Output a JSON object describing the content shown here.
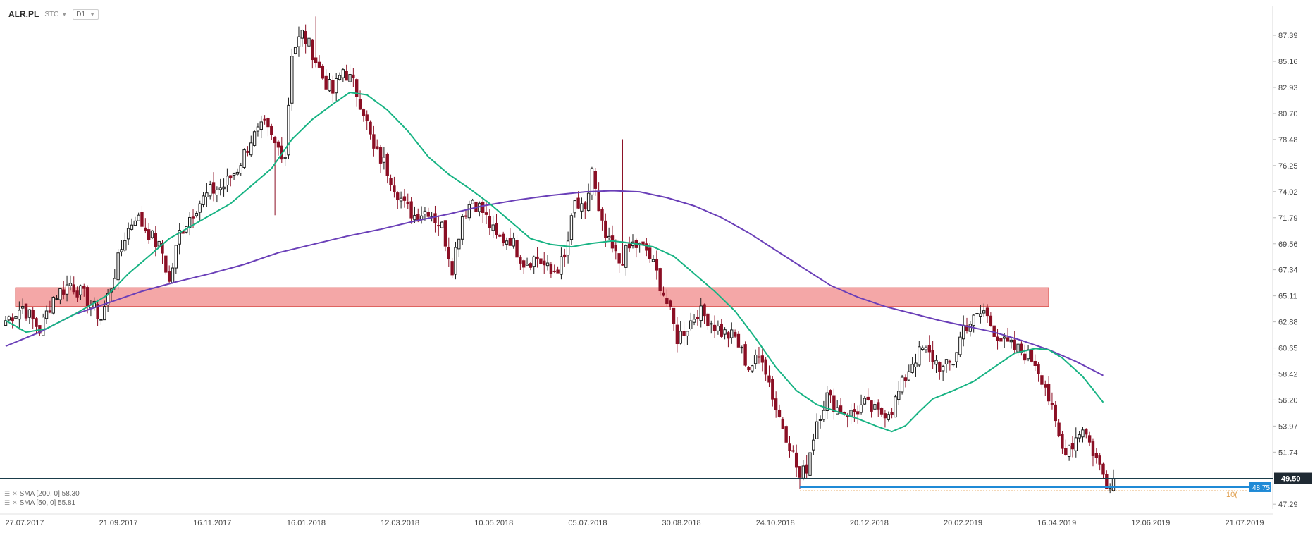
{
  "toolbar": {
    "symbol": "ALR.PL",
    "chart_type": "STC",
    "interval": "D1"
  },
  "legend": {
    "sma200_label": "SMA [200, 0] 58.30",
    "sma50_label": "SMA [50, 0] 55.81"
  },
  "colors": {
    "bull_candle": "#1a1a1a",
    "bear_candle": "#8b0f24",
    "sma200": "#6a3fb8",
    "sma50": "#17b383",
    "support_zone_fill": "#f08a8a",
    "support_zone_border": "#d9534f",
    "price_line": "#1a3c4a",
    "low_line": "#1f8ad6"
  },
  "chart_data": {
    "type": "candlestick",
    "title": "",
    "y_axis": {
      "ticks": [
        "87.39",
        "85.16",
        "82.93",
        "80.70",
        "78.48",
        "76.25",
        "74.02",
        "71.79",
        "69.56",
        "67.34",
        "65.11",
        "62.88",
        "60.65",
        "58.42",
        "56.20",
        "53.97",
        "51.74",
        "47.29"
      ],
      "range": [
        47.0,
        89.2
      ]
    },
    "x_axis": {
      "ticks": [
        "27.07.2017",
        "21.09.2017",
        "16.11.2017",
        "16.01.2018",
        "12.03.2018",
        "10.05.2018",
        "05.07.2018",
        "30.08.2018",
        "24.10.2018",
        "20.12.2018",
        "20.02.2019",
        "16.04.2019",
        "12.06.2019",
        "21.07.2019"
      ]
    },
    "support_zone": {
      "from": 64.2,
      "to": 65.8
    },
    "last_price": {
      "value": 49.5,
      "label": "49.50"
    },
    "recent_low": {
      "value": 48.75,
      "label": "48.75"
    },
    "partial_label": "10(",
    "close_path": [
      [
        0,
        63.0
      ],
      [
        5,
        64.2
      ],
      [
        10,
        62.2
      ],
      [
        14,
        65.0
      ],
      [
        19,
        66.2
      ],
      [
        24,
        64.8
      ],
      [
        28,
        63.2
      ],
      [
        31,
        66.0
      ],
      [
        35,
        70.2
      ],
      [
        38,
        72.0
      ],
      [
        42,
        70.5
      ],
      [
        46,
        68.8
      ],
      [
        48,
        66.2
      ],
      [
        51,
        70.5
      ],
      [
        56,
        72.8
      ],
      [
        60,
        74.0
      ],
      [
        64,
        74.5
      ],
      [
        68,
        76.0
      ],
      [
        72,
        78.5
      ],
      [
        76,
        79.6
      ],
      [
        79,
        78.0
      ],
      [
        82,
        77.2
      ],
      [
        84,
        86.0
      ],
      [
        87,
        87.5
      ],
      [
        90,
        86.0
      ],
      [
        93,
        83.8
      ],
      [
        96,
        82.5
      ],
      [
        99,
        84.5
      ],
      [
        102,
        83.2
      ],
      [
        105,
        81.0
      ],
      [
        108,
        77.5
      ],
      [
        111,
        76.5
      ],
      [
        114,
        74.6
      ],
      [
        117,
        72.8
      ],
      [
        120,
        72.0
      ],
      [
        124,
        72.5
      ],
      [
        128,
        71.0
      ],
      [
        131,
        67.6
      ],
      [
        134,
        72.0
      ],
      [
        137,
        73.4
      ],
      [
        140,
        72.3
      ],
      [
        144,
        70.0
      ],
      [
        148,
        70.0
      ],
      [
        152,
        68.0
      ],
      [
        156,
        68.4
      ],
      [
        160,
        67.0
      ],
      [
        164,
        68.2
      ],
      [
        167,
        73.0
      ],
      [
        170,
        72.0
      ],
      [
        172,
        76.0
      ],
      [
        174,
        72.0
      ],
      [
        176,
        70.0
      ],
      [
        180,
        68.0
      ],
      [
        184,
        69.5
      ],
      [
        188,
        69.0
      ],
      [
        191,
        67.0
      ],
      [
        194,
        64.5
      ],
      [
        197,
        61.5
      ],
      [
        200,
        62.5
      ],
      [
        203,
        63.8
      ],
      [
        206,
        63.2
      ],
      [
        210,
        62.0
      ],
      [
        214,
        61.5
      ],
      [
        218,
        59.0
      ],
      [
        222,
        60.0
      ],
      [
        226,
        55.5
      ],
      [
        230,
        52.5
      ],
      [
        233,
        49.5
      ],
      [
        235,
        50.5
      ],
      [
        238,
        54.5
      ],
      [
        241,
        56.5
      ],
      [
        244,
        55.5
      ],
      [
        248,
        55.0
      ],
      [
        252,
        55.8
      ],
      [
        256,
        55.0
      ],
      [
        260,
        55.5
      ],
      [
        263,
        57.5
      ],
      [
        266,
        59.5
      ],
      [
        269,
        60.5
      ],
      [
        272,
        59.8
      ],
      [
        275,
        58.8
      ],
      [
        278,
        59.5
      ],
      [
        281,
        62.5
      ],
      [
        284,
        63.0
      ],
      [
        287,
        63.8
      ],
      [
        290,
        62.2
      ],
      [
        293,
        61.0
      ],
      [
        296,
        60.6
      ],
      [
        299,
        60.2
      ],
      [
        302,
        59.5
      ],
      [
        305,
        57.5
      ],
      [
        308,
        54.0
      ],
      [
        310,
        52.0
      ],
      [
        313,
        52.5
      ],
      [
        316,
        54.0
      ],
      [
        318,
        52.5
      ],
      [
        321,
        50.5
      ],
      [
        323,
        49.2
      ],
      [
        325,
        49.5
      ]
    ],
    "spikes": [
      {
        "i": 79,
        "low": 72.0
      },
      {
        "i": 91,
        "high": 89.0
      },
      {
        "i": 115,
        "low": 72.5
      },
      {
        "i": 181,
        "high": 78.5
      },
      {
        "i": 185,
        "high": 70.0
      },
      {
        "i": 233,
        "low": 48.6
      },
      {
        "i": 323,
        "low": 48.6
      }
    ],
    "sma50": [
      [
        0,
        63.0
      ],
      [
        6,
        62.0
      ],
      [
        12,
        62.3
      ],
      [
        20,
        63.5
      ],
      [
        26,
        64.5
      ],
      [
        30,
        65.2
      ],
      [
        36,
        67.0
      ],
      [
        42,
        68.5
      ],
      [
        48,
        70.0
      ],
      [
        54,
        71.0
      ],
      [
        60,
        72.0
      ],
      [
        66,
        73.0
      ],
      [
        72,
        74.5
      ],
      [
        78,
        76.0
      ],
      [
        84,
        78.5
      ],
      [
        90,
        80.2
      ],
      [
        96,
        81.5
      ],
      [
        101,
        82.5
      ],
      [
        106,
        82.3
      ],
      [
        112,
        81.0
      ],
      [
        118,
        79.2
      ],
      [
        124,
        77.0
      ],
      [
        130,
        75.5
      ],
      [
        136,
        74.3
      ],
      [
        142,
        73.0
      ],
      [
        148,
        71.5
      ],
      [
        154,
        70.0
      ],
      [
        160,
        69.5
      ],
      [
        166,
        69.3
      ],
      [
        172,
        69.6
      ],
      [
        178,
        69.8
      ],
      [
        184,
        69.6
      ],
      [
        190,
        69.3
      ],
      [
        196,
        68.5
      ],
      [
        202,
        67.0
      ],
      [
        208,
        65.5
      ],
      [
        214,
        63.8
      ],
      [
        220,
        61.5
      ],
      [
        226,
        59.0
      ],
      [
        232,
        57.0
      ],
      [
        238,
        55.8
      ],
      [
        244,
        55.2
      ],
      [
        250,
        54.6
      ],
      [
        256,
        53.9
      ],
      [
        260,
        53.5
      ],
      [
        264,
        54.0
      ],
      [
        268,
        55.2
      ],
      [
        272,
        56.3
      ],
      [
        278,
        57.0
      ],
      [
        284,
        57.8
      ],
      [
        290,
        59.0
      ],
      [
        296,
        60.2
      ],
      [
        302,
        60.6
      ],
      [
        306,
        60.5
      ],
      [
        310,
        59.8
      ],
      [
        316,
        58.2
      ],
      [
        322,
        56.0
      ]
    ],
    "sma200": [
      [
        0,
        60.8
      ],
      [
        10,
        62.0
      ],
      [
        20,
        63.5
      ],
      [
        30,
        64.5
      ],
      [
        40,
        65.5
      ],
      [
        50,
        66.3
      ],
      [
        60,
        67.0
      ],
      [
        70,
        67.8
      ],
      [
        80,
        68.8
      ],
      [
        90,
        69.5
      ],
      [
        100,
        70.2
      ],
      [
        110,
        70.8
      ],
      [
        120,
        71.5
      ],
      [
        130,
        72.1
      ],
      [
        140,
        72.8
      ],
      [
        150,
        73.3
      ],
      [
        160,
        73.7
      ],
      [
        170,
        74.0
      ],
      [
        178,
        74.1
      ],
      [
        186,
        74.0
      ],
      [
        194,
        73.5
      ],
      [
        202,
        72.8
      ],
      [
        210,
        71.8
      ],
      [
        218,
        70.5
      ],
      [
        226,
        69.0
      ],
      [
        234,
        67.5
      ],
      [
        242,
        66.0
      ],
      [
        250,
        65.0
      ],
      [
        258,
        64.2
      ],
      [
        266,
        63.6
      ],
      [
        274,
        63.0
      ],
      [
        282,
        62.5
      ],
      [
        290,
        62.0
      ],
      [
        298,
        61.3
      ],
      [
        306,
        60.5
      ],
      [
        314,
        59.5
      ],
      [
        322,
        58.3
      ]
    ],
    "n_bars": 326
  }
}
